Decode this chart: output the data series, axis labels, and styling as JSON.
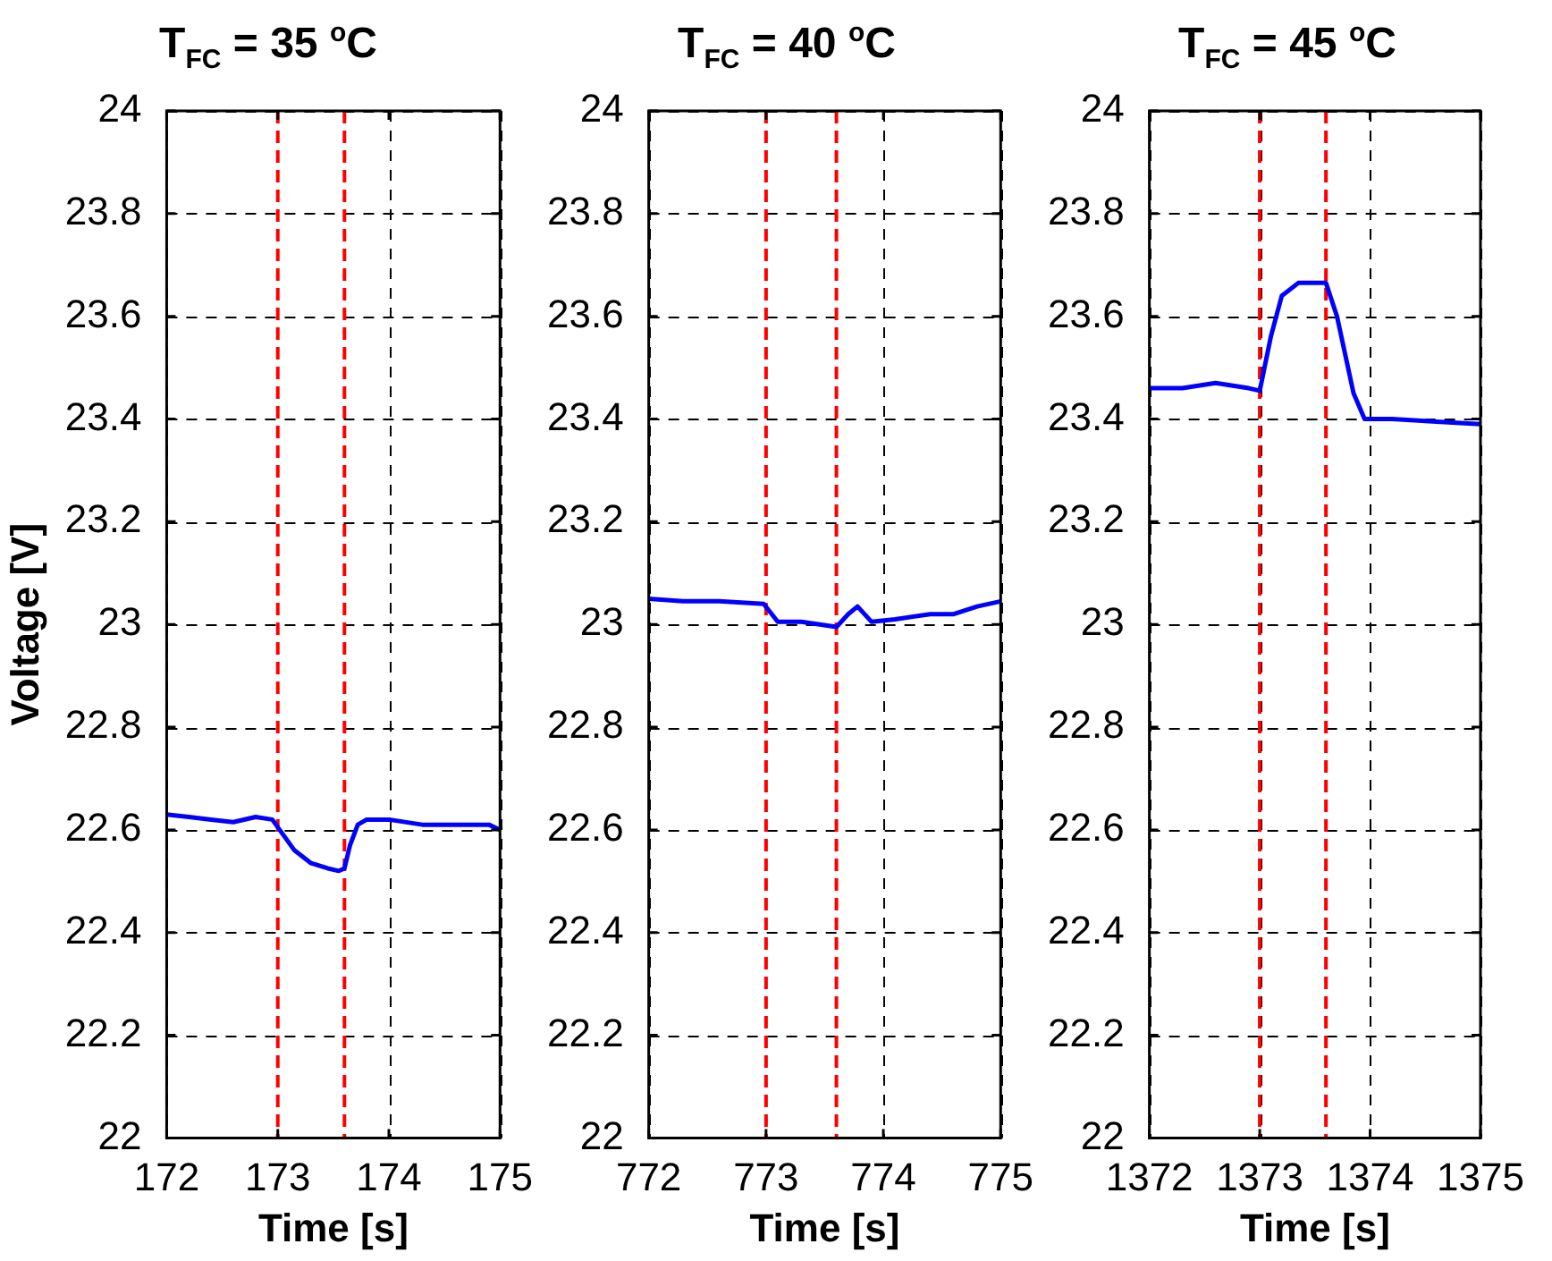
{
  "chart_data": [
    {
      "type": "line",
      "title": "T$_{FC}$ = 35 $^{o}$C",
      "xlabel": "Time [s]",
      "ylabel": "Voltage [V]",
      "xlim": [
        172,
        175
      ],
      "xticks": [
        172,
        173,
        174,
        175
      ],
      "ylim": [
        22,
        24
      ],
      "yticks": [
        22,
        22.2,
        22.4,
        22.6,
        22.8,
        23,
        23.2,
        23.4,
        23.6,
        23.8,
        24
      ],
      "grid": true,
      "marker": "none",
      "line_style": "solid",
      "series": [
        {
          "color": "#0000ff",
          "x": [
            172,
            172.2,
            172.4,
            172.6,
            172.8,
            172.95,
            173.05,
            173.15,
            173.3,
            173.45,
            173.55,
            173.6,
            173.65,
            173.72,
            173.8,
            174,
            174.3,
            174.6,
            174.9,
            175
          ],
          "values": [
            22.63,
            22.625,
            22.62,
            22.615,
            22.625,
            22.62,
            22.59,
            22.56,
            22.535,
            22.525,
            22.52,
            22.525,
            22.57,
            22.61,
            22.62,
            22.62,
            22.61,
            22.61,
            22.61,
            22.6
          ]
        }
      ],
      "ref_lines": [
        {
          "axis": "x",
          "value": 173,
          "color": "#ff0000",
          "line_style": "dashed"
        },
        {
          "axis": "x",
          "value": 173.6,
          "color": "#ff0000",
          "line_style": "dashed"
        }
      ]
    },
    {
      "type": "line",
      "title": "T$_{FC}$ = 40 $^{o}$C",
      "xlabel": "Time [s]",
      "xlim": [
        772,
        775
      ],
      "xticks": [
        772,
        773,
        774,
        775
      ],
      "ylim": [
        22,
        24
      ],
      "yticks": [
        22,
        22.2,
        22.4,
        22.6,
        22.8,
        23,
        23.2,
        23.4,
        23.6,
        23.8,
        24
      ],
      "grid": true,
      "marker": "none",
      "line_style": "solid",
      "series": [
        {
          "color": "#0000ff",
          "x": [
            772,
            772.3,
            772.6,
            772.98,
            773.1,
            773.3,
            773.6,
            773.7,
            773.78,
            773.9,
            774.1,
            774.4,
            774.6,
            774.8,
            775
          ],
          "values": [
            23.05,
            23.045,
            23.045,
            23.04,
            23.005,
            23.005,
            22.995,
            23.02,
            23.035,
            23.005,
            23.01,
            23.02,
            23.02,
            23.035,
            23.045
          ]
        }
      ],
      "ref_lines": [
        {
          "axis": "x",
          "value": 773,
          "color": "#ff0000",
          "line_style": "dashed"
        },
        {
          "axis": "x",
          "value": 773.6,
          "color": "#ff0000",
          "line_style": "dashed"
        }
      ]
    },
    {
      "type": "line",
      "title": "T$_{FC}$ = 45 $^{o}$C",
      "xlabel": "Time [s]",
      "xlim": [
        1372,
        1375
      ],
      "xticks": [
        1372,
        1373,
        1374,
        1375
      ],
      "ylim": [
        22,
        24
      ],
      "yticks": [
        22,
        22.2,
        22.4,
        22.6,
        22.8,
        23,
        23.2,
        23.4,
        23.6,
        23.8,
        24
      ],
      "grid": true,
      "marker": "none",
      "line_style": "solid",
      "series": [
        {
          "color": "#0000ff",
          "x": [
            1372,
            1372.3,
            1372.6,
            1372.9,
            1373,
            1373.1,
            1373.2,
            1373.35,
            1373.6,
            1373.7,
            1373.85,
            1373.95,
            1374.2,
            1374.6,
            1375
          ],
          "values": [
            23.46,
            23.46,
            23.47,
            23.46,
            23.455,
            23.56,
            23.64,
            23.665,
            23.665,
            23.6,
            23.45,
            23.4,
            23.4,
            23.395,
            23.39
          ]
        }
      ],
      "ref_lines": [
        {
          "axis": "x",
          "value": 1373,
          "color": "#ff0000",
          "line_style": "dashed"
        },
        {
          "axis": "x",
          "value": 1373.6,
          "color": "#ff0000",
          "line_style": "dashed"
        }
      ]
    }
  ]
}
